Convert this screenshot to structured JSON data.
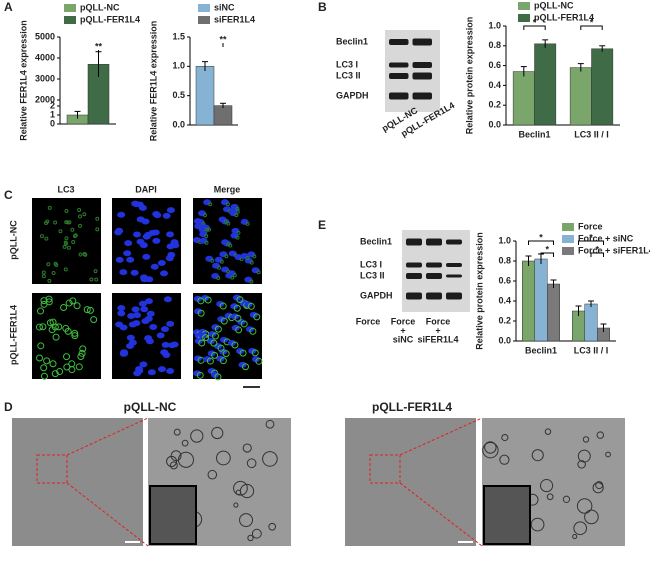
{
  "panels": {
    "letters": [
      "A",
      "B",
      "C",
      "D",
      "E"
    ],
    "blot_b": {
      "rows": [
        "Beclin1",
        "LC3 I",
        "LC3 II",
        "GAPDH"
      ],
      "lanes": [
        "pQLL-NC",
        "pQLL-FER1L4"
      ]
    },
    "blot_e": {
      "rows": [
        "Beclin1",
        "LC3 I",
        "LC3 II",
        "GAPDH"
      ],
      "lanes": [
        [
          "Force"
        ],
        [
          "Force",
          "+",
          "siNC"
        ],
        [
          "Force",
          "+",
          "siFER1L4"
        ]
      ]
    },
    "micro_c": {
      "columns": [
        "LC3",
        "DAPI",
        "Merge"
      ],
      "rows": [
        "pQLL-NC",
        "pQLL-FER1L4"
      ]
    },
    "em_d": {
      "titles": [
        "pQLL-NC",
        "pQLL-FER1L4"
      ]
    }
  },
  "chart_data": [
    {
      "type": "bar",
      "ylabel": "Relative FER1L4 expression",
      "categories": [
        null
      ],
      "series": [
        {
          "name": "pQLL-NC",
          "color": "#7aa56b",
          "values": [
            1.0
          ],
          "errors": [
            0.4
          ]
        },
        {
          "name": "pQLL-FER1L4",
          "color": "#3f6b46",
          "values": [
            3700
          ],
          "errors": [
            600
          ]
        }
      ],
      "ylim": [
        0,
        5000
      ],
      "axis_break": [
        2,
        2000
      ],
      "yticks": [
        0,
        1,
        2,
        2000,
        3000,
        4000,
        5000
      ],
      "annotations": [
        "**"
      ]
    },
    {
      "type": "bar",
      "ylabel": "Relative FER1L4 expression",
      "categories": [
        null
      ],
      "series": [
        {
          "name": "siNC",
          "color": "#86b2d3",
          "values": [
            1.0
          ],
          "errors": [
            0.08
          ]
        },
        {
          "name": "siFER1L4",
          "color": "#6f6f6f",
          "values": [
            0.33
          ],
          "errors": [
            0.04
          ]
        }
      ],
      "ylim": [
        0,
        1.5
      ],
      "yticks": [
        {
          "value": 0,
          "label": "0.0"
        },
        0.5,
        {
          "value": 1,
          "label": "1.0"
        },
        1.5
      ],
      "annotations": [
        "**"
      ]
    },
    {
      "type": "bar",
      "ylabel": "Relative protein expression",
      "categories": [
        "Beclin1",
        "LC3 II / I"
      ],
      "series": [
        {
          "name": "pQLL-NC",
          "color": "#7aa56b",
          "values": [
            0.54,
            0.58
          ],
          "errors": [
            0.05,
            0.04
          ]
        },
        {
          "name": "pQLL-FER1L4",
          "color": "#3f6b46",
          "values": [
            0.82,
            0.77
          ],
          "errors": [
            0.04,
            0.03
          ]
        }
      ],
      "ylim": [
        0,
        1
      ],
      "yticks": [
        {
          "value": 0,
          "label": "0.0"
        },
        0.2,
        0.4,
        0.6,
        0.8,
        {
          "value": 1,
          "label": "1.0"
        }
      ],
      "annotations": [
        "*",
        "*"
      ]
    },
    {
      "type": "bar",
      "ylabel": "Relative protein expression",
      "categories": [
        "Beclin1",
        "LC3 II / I"
      ],
      "series": [
        {
          "name": "Force",
          "color": "#7aa56b",
          "values": [
            0.8,
            0.3
          ],
          "errors": [
            0.05,
            0.05
          ]
        },
        {
          "name": "Force + siNC",
          "color": "#86b2d3",
          "values": [
            0.82,
            0.37
          ],
          "errors": [
            0.05,
            0.03
          ]
        },
        {
          "name": "Force + siFER1L4",
          "color": "#7a7a7a",
          "values": [
            0.57,
            0.13
          ],
          "errors": [
            0.04,
            0.04
          ]
        }
      ],
      "ylim": [
        0,
        1
      ],
      "yticks": [
        {
          "value": 0,
          "label": "0.0"
        },
        0.2,
        0.4,
        0.6,
        0.8,
        {
          "value": 1,
          "label": "1.0"
        }
      ],
      "annotations": [
        "*",
        "*",
        "*",
        "*"
      ]
    }
  ]
}
